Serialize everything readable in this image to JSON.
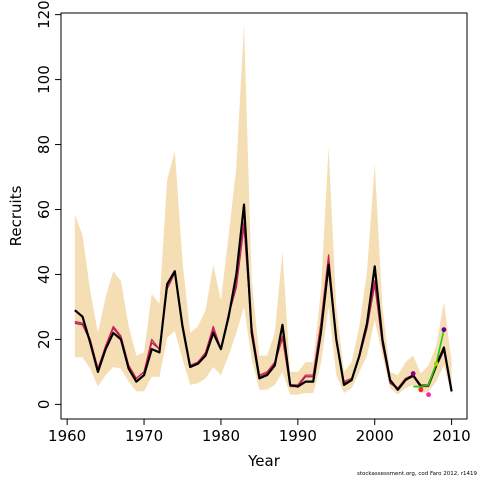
{
  "chart_data": {
    "type": "line",
    "title": "",
    "xlabel": "Year",
    "ylabel": "Recruits",
    "xlim": [
      1959.2,
      2012.0
    ],
    "ylim": [
      -4.5,
      120.5
    ],
    "xticks": [
      1960,
      1970,
      1980,
      1990,
      2000,
      2010
    ],
    "yticks": [
      0,
      20,
      40,
      60,
      80,
      100,
      120
    ],
    "grid": false,
    "legend": "none",
    "years": [
      1961,
      1962,
      1963,
      1964,
      1965,
      1966,
      1967,
      1968,
      1969,
      1970,
      1971,
      1972,
      1973,
      1974,
      1975,
      1976,
      1977,
      1978,
      1979,
      1980,
      1981,
      1982,
      1983,
      1984,
      1985,
      1986,
      1987,
      1988,
      1989,
      1990,
      1991,
      1992,
      1993,
      1994,
      1995,
      1996,
      1997,
      1998,
      1999,
      2000,
      2001,
      2002,
      2003,
      2004,
      2005,
      2006,
      2007,
      2008,
      2009,
      2010
    ],
    "band": {
      "lower": [
        14.5,
        14.5,
        11,
        5.5,
        9,
        11.5,
        11,
        7,
        4,
        4,
        8.5,
        8.5,
        20.5,
        22.5,
        14,
        6,
        6.5,
        8,
        11.5,
        9,
        15,
        22,
        30,
        14,
        4.5,
        4.5,
        6,
        10,
        3,
        3,
        3.5,
        3.5,
        12.5,
        30,
        9,
        3.5,
        5,
        10,
        15,
        26,
        15,
        5,
        3,
        5,
        6,
        3.5,
        4,
        7,
        12,
        3
      ],
      "upper": [
        58.5,
        52,
        35,
        22,
        33,
        41,
        38,
        24,
        15,
        16,
        34,
        31,
        69,
        78,
        44,
        22,
        24,
        29,
        43,
        32,
        52,
        73,
        117,
        38,
        15,
        15,
        22,
        47,
        10,
        10,
        13,
        13,
        35,
        79,
        30,
        10,
        13,
        24,
        41,
        74,
        30,
        10,
        9,
        13,
        15,
        9.5,
        12,
        18,
        31.5,
        13
      ]
    },
    "series": [
      {
        "values": [
          29,
          27,
          19,
          10,
          17,
          22,
          20,
          11,
          7,
          9,
          17,
          16,
          37,
          41,
          24,
          11.5,
          12.5,
          15,
          22,
          17,
          27,
          40,
          61.5,
          22,
          8,
          9,
          12,
          24.5,
          6,
          5.5,
          7,
          7,
          22,
          43,
          20,
          6,
          7.5,
          15,
          25,
          42.5,
          20,
          7.5,
          4.5,
          7.5,
          9,
          5.5,
          6,
          12,
          17.5,
          4
        ],
        "color": "#000000"
      },
      {
        "values": [
          25.5,
          25,
          20,
          11,
          18,
          24,
          21,
          12,
          8,
          10,
          20,
          17,
          36,
          41,
          25,
          12,
          13,
          16,
          24,
          17,
          28,
          37,
          56,
          24,
          9,
          10,
          13,
          21,
          6,
          6,
          9,
          9,
          25,
          46,
          20,
          7,
          8,
          15,
          24,
          38,
          19,
          7,
          5,
          8,
          9,
          6,
          6,
          12,
          17,
          4
        ],
        "color": "#cc2255"
      },
      {
        "values": [
          25,
          24.5,
          19.5,
          11,
          17.5,
          23.5,
          20.5,
          12,
          8,
          10,
          19,
          17,
          35.5,
          40.5,
          24.5,
          12,
          12.5,
          15.5,
          23,
          17,
          27.5,
          36,
          55,
          23,
          8.5,
          9.5,
          12.5,
          20.5,
          5.5,
          5.5,
          8.5,
          8.5,
          24.5,
          45,
          19.5,
          6.5,
          7.5,
          14.5,
          23.5,
          37,
          18.5,
          6.5,
          5,
          7.5,
          8.5,
          5.5,
          5.5,
          11.5,
          16.5,
          4
        ],
        "color": "#a0205a"
      }
    ],
    "retro_points": [
      {
        "year": 2005,
        "value": 9.5,
        "color": "#880088"
      },
      {
        "year": 2006,
        "value": 4.5,
        "color": "#ff2222"
      },
      {
        "year": 2007,
        "value": 3.0,
        "color": "#ff22aa"
      },
      {
        "year": 2008,
        "value": 12.5,
        "color": "#aacc00"
      },
      {
        "year": 2009,
        "value": 23.0,
        "color": "#660099"
      }
    ],
    "retro_line": {
      "years": [
        2005,
        2006,
        2007,
        2008,
        2009
      ],
      "values": [
        5.5,
        5.5,
        6,
        12.5,
        23
      ],
      "color": "#22cc00"
    },
    "band_color": "#f5deb3",
    "credit": "stockassessment.org, cod Faro 2012, r1419"
  }
}
